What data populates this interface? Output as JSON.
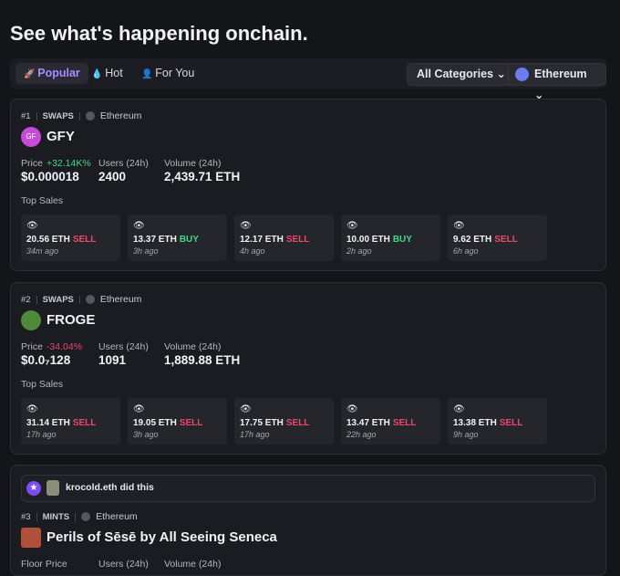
{
  "header": {
    "title": "See what's happening onchain."
  },
  "tabs": [
    "Popular",
    "Hot",
    "For You"
  ],
  "filters": [
    "All Categories",
    "Ethereum"
  ],
  "cards": [
    {
      "rank": "#1",
      "kind": "SWAPS",
      "chain": "Ethereum",
      "avatar": "GF",
      "name": "GFY",
      "stats": [
        {
          "label": "Price",
          "change": "+32.14K%",
          "value": "$0.000018"
        },
        {
          "label": "Users (24h)",
          "value": "2400"
        },
        {
          "label": "Volume (24h)",
          "value": "2,439.71 ETH"
        }
      ],
      "sales_label": "Top Sales",
      "sales": [
        {
          "amount": "20.56 ETH",
          "side": "SELL",
          "time": "34m ago"
        },
        {
          "amount": "13.37 ETH",
          "side": "BUY",
          "time": "3h ago"
        },
        {
          "amount": "12.17 ETH",
          "side": "SELL",
          "time": "4h ago"
        },
        {
          "amount": "10.00 ETH",
          "side": "BUY",
          "time": "2h ago"
        },
        {
          "amount": "9.62 ETH",
          "side": "SELL",
          "time": "6h ago"
        }
      ]
    },
    {
      "rank": "#2",
      "kind": "SWAPS",
      "chain": "Ethereum",
      "name": "FROGE",
      "stats": [
        {
          "label": "Price",
          "change": "-34.04%",
          "value": "$0.0₇128"
        },
        {
          "label": "Users (24h)",
          "value": "1091"
        },
        {
          "label": "Volume (24h)",
          "value": "1,889.88 ETH"
        }
      ],
      "sales_label": "Top Sales",
      "sales": [
        {
          "amount": "31.14 ETH",
          "side": "SELL",
          "time": "17h ago"
        },
        {
          "amount": "19.05 ETH",
          "side": "SELL",
          "time": "3h ago"
        },
        {
          "amount": "17.75 ETH",
          "side": "SELL",
          "time": "17h ago"
        },
        {
          "amount": "13.47 ETH",
          "side": "SELL",
          "time": "22h ago"
        },
        {
          "amount": "13.38 ETH",
          "side": "SELL",
          "time": "9h ago"
        }
      ]
    },
    {
      "actor": "krocold.eth did this",
      "rank": "#3",
      "kind": "MINTS",
      "chain": "Ethereum",
      "name": "Perils of Sēsē by All Seeing Seneca",
      "stats": [
        {
          "label": "Floor Price"
        },
        {
          "label": "Users (24h)"
        },
        {
          "label": "Volume (24h)"
        }
      ]
    }
  ]
}
